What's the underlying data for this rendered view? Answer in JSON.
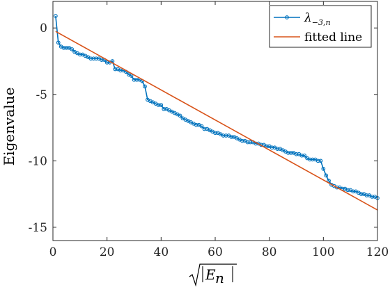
{
  "chart_data": {
    "type": "line",
    "ylabel": "Eigenvalue",
    "xlim": [
      0,
      120
    ],
    "ylim": [
      -16,
      2
    ],
    "xticks": [
      0,
      20,
      40,
      60,
      80,
      100,
      120
    ],
    "xtick_labels": [
      "0",
      "20",
      "40",
      "60",
      "80",
      "100",
      "120"
    ],
    "yticks": [
      0,
      -5,
      -10,
      -15
    ],
    "ytick_labels": [
      "0",
      "-5",
      "-10",
      "-15"
    ],
    "grid": false,
    "legend_position": "top-right",
    "series": [
      {
        "name": "λ−3,n",
        "color": "#0072BD",
        "marker": "circle",
        "x": [
          1,
          2,
          3,
          4,
          5,
          6,
          7,
          8,
          9,
          10,
          11,
          12,
          13,
          14,
          15,
          16,
          17,
          18,
          19,
          20,
          21,
          22,
          23,
          24,
          25,
          26,
          27,
          28,
          29,
          30,
          31,
          32,
          33,
          34,
          35,
          36,
          37,
          38,
          39,
          40,
          41,
          42,
          43,
          44,
          45,
          46,
          47,
          48,
          49,
          50,
          51,
          52,
          53,
          54,
          55,
          56,
          57,
          58,
          59,
          60,
          61,
          62,
          63,
          64,
          65,
          66,
          67,
          68,
          69,
          70,
          71,
          72,
          73,
          74,
          75,
          76,
          77,
          78,
          79,
          80,
          81,
          82,
          83,
          84,
          85,
          86,
          87,
          88,
          89,
          90,
          91,
          92,
          93,
          94,
          95,
          96,
          97,
          98,
          99,
          100,
          101,
          102,
          103,
          104,
          105,
          106,
          107,
          108,
          109,
          110,
          111,
          112,
          113,
          114,
          115,
          116,
          117,
          118,
          119,
          120
        ],
        "y": [
          0.9,
          -1.1,
          -1.4,
          -1.5,
          -1.5,
          -1.5,
          -1.6,
          -1.8,
          -1.9,
          -2.0,
          -2.0,
          -2.1,
          -2.2,
          -2.3,
          -2.3,
          -2.3,
          -2.3,
          -2.4,
          -2.4,
          -2.6,
          -2.6,
          -2.5,
          -3.1,
          -3.1,
          -3.2,
          -3.2,
          -3.3,
          -3.5,
          -3.6,
          -3.9,
          -3.9,
          -3.9,
          -4.0,
          -4.4,
          -5.4,
          -5.5,
          -5.6,
          -5.7,
          -5.8,
          -5.8,
          -6.1,
          -6.1,
          -6.2,
          -6.3,
          -6.4,
          -6.5,
          -6.6,
          -6.8,
          -6.9,
          -7.0,
          -7.1,
          -7.2,
          -7.3,
          -7.3,
          -7.4,
          -7.6,
          -7.6,
          -7.7,
          -7.8,
          -7.9,
          -7.9,
          -8.0,
          -8.1,
          -8.1,
          -8.1,
          -8.2,
          -8.2,
          -8.3,
          -8.4,
          -8.5,
          -8.5,
          -8.6,
          -8.6,
          -8.6,
          -8.7,
          -8.7,
          -8.8,
          -8.8,
          -8.9,
          -8.9,
          -9.0,
          -9.0,
          -9.1,
          -9.1,
          -9.2,
          -9.3,
          -9.4,
          -9.4,
          -9.4,
          -9.5,
          -9.5,
          -9.6,
          -9.6,
          -9.8,
          -9.9,
          -9.9,
          -9.9,
          -10.0,
          -10.0,
          -10.6,
          -11.1,
          -11.5,
          -11.8,
          -11.9,
          -12.0,
          -12.0,
          -12.1,
          -12.1,
          -12.2,
          -12.2,
          -12.3,
          -12.3,
          -12.4,
          -12.5,
          -12.5,
          -12.6,
          -12.6,
          -12.7,
          -12.7,
          -12.8
        ]
      },
      {
        "name": "fitted line",
        "color": "#D95319",
        "marker": "none",
        "x": [
          1,
          120
        ],
        "y": [
          -0.26,
          -13.7
        ]
      }
    ]
  }
}
